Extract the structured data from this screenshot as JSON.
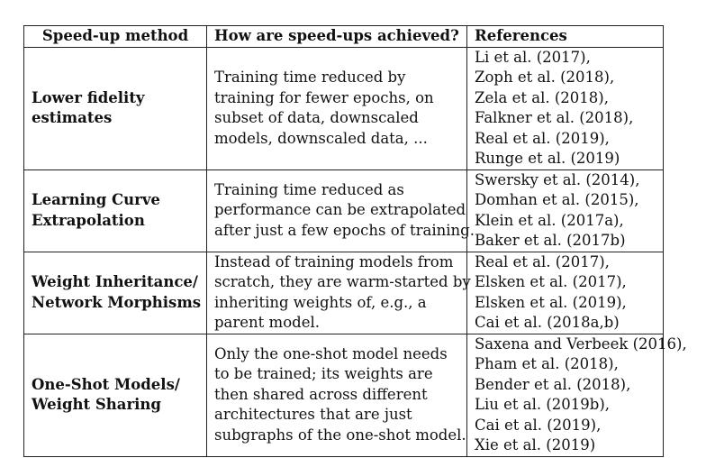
{
  "table": {
    "headers": [
      "Speed-up method",
      "How are speed-ups achieved?",
      "References"
    ],
    "rows": [
      {
        "method": [
          "Lower fidelity",
          "estimates"
        ],
        "how": [
          "Training time reduced by",
          "training for fewer epochs, on",
          "subset of data, downscaled",
          "models, downscaled data, ..."
        ],
        "refs": [
          "Li et al. (2017),",
          "Zoph et al. (2018),",
          "Zela et al. (2018),",
          "Falkner et al. (2018),",
          "Real et al. (2019),",
          "Runge et al. (2019)"
        ]
      },
      {
        "method": [
          "Learning Curve",
          "Extrapolation"
        ],
        "how": [
          "Training time reduced as",
          "performance can be extrapolated",
          "after just a few epochs of training."
        ],
        "refs": [
          "Swersky et al. (2014),",
          "Domhan et al. (2015),",
          "Klein et al. (2017a),",
          "Baker et al. (2017b)"
        ]
      },
      {
        "method": [
          "Weight Inheritance/",
          "Network Morphisms"
        ],
        "how": [
          "Instead of training models from",
          "scratch, they are warm-started by",
          "inheriting weights of, e.g., a",
          "parent model."
        ],
        "refs": [
          "Real et al. (2017),",
          "Elsken et al. (2017),",
          "Elsken et al. (2019),",
          "Cai et al. (2018a,b)"
        ]
      },
      {
        "method": [
          "One-Shot Models/",
          "Weight Sharing"
        ],
        "how": [
          "Only the one-shot model needs",
          "to be trained; its weights are",
          "then shared across different",
          "architectures that are just",
          "subgraphs of the one-shot model."
        ],
        "refs": [
          "Saxena and Verbeek (2016),",
          "Pham et al. (2018),",
          "Bender et al. (2018),",
          "Liu et al. (2019b),",
          "Cai et al. (2019),",
          "Xie et al. (2019)"
        ]
      }
    ]
  }
}
